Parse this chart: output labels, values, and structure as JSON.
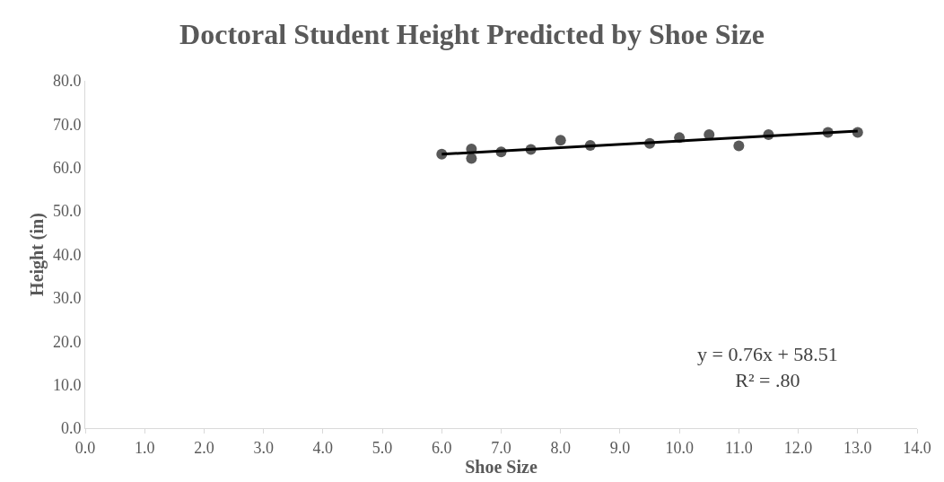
{
  "chart_data": {
    "type": "scatter",
    "title": "Doctoral Student Height Predicted by Shoe Size",
    "xlabel": "Shoe Size",
    "ylabel": "Height (in)",
    "xlim": [
      0,
      14
    ],
    "xticks": [
      {
        "value": 0,
        "label": "0.0"
      },
      {
        "value": 1,
        "label": "1.0"
      },
      {
        "value": 2,
        "label": "2.0"
      },
      {
        "value": 3,
        "label": "3.0"
      },
      {
        "value": 4,
        "label": "4.0"
      },
      {
        "value": 5,
        "label": "5.0"
      },
      {
        "value": 6,
        "label": "6.0"
      },
      {
        "value": 7,
        "label": "7.0"
      },
      {
        "value": 8,
        "label": "8.0"
      },
      {
        "value": 9,
        "label": "9.0"
      },
      {
        "value": 10,
        "label": "10.0"
      },
      {
        "value": 11,
        "label": "11.0"
      },
      {
        "value": 12,
        "label": "12.0"
      },
      {
        "value": 13,
        "label": "13.0"
      },
      {
        "value": 14,
        "label": "14.0"
      }
    ],
    "ylim": [
      0,
      80
    ],
    "yticks": [
      {
        "value": 0,
        "label": "0.0"
      },
      {
        "value": 10,
        "label": "10.0"
      },
      {
        "value": 20,
        "label": "20.0"
      },
      {
        "value": 30,
        "label": "30.0"
      },
      {
        "value": 40,
        "label": "40.0"
      },
      {
        "value": 50,
        "label": "50.0"
      },
      {
        "value": 60,
        "label": "60.0"
      },
      {
        "value": 70,
        "label": "70.0"
      },
      {
        "value": 80,
        "label": "80.0"
      }
    ],
    "series": [
      {
        "color": "#595959",
        "marker": "circle",
        "x": [
          6,
          6.5,
          6.5,
          7,
          7.5,
          8,
          8.5,
          9.5,
          10,
          10.5,
          11,
          11.5,
          12.5,
          13
        ],
        "values": [
          63.1,
          64.3,
          62.1,
          63.6,
          64.2,
          66.3,
          65.1,
          65.6,
          66.9,
          67.6,
          65.0,
          67.6,
          68.1,
          68.1
        ]
      },
      {
        "type": "line",
        "color": "#000000",
        "marker": "none",
        "line_style": "solid",
        "x": [
          6,
          13
        ],
        "values": [
          63.1,
          68.4
        ]
      }
    ],
    "annotations": [
      "y = 0.76x + 58.51\nR² = .80"
    ]
  }
}
